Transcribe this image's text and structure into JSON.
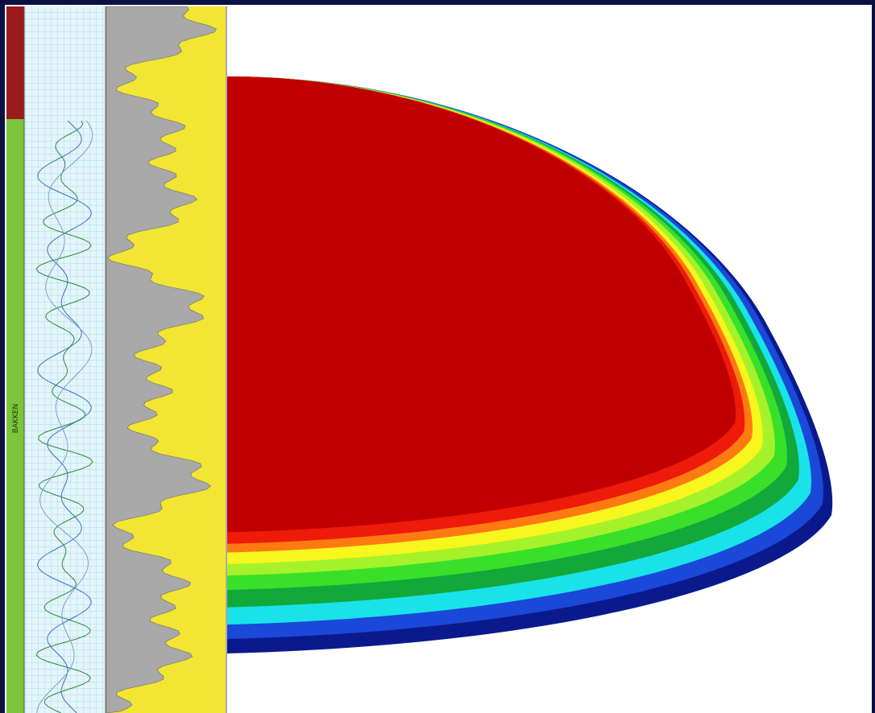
{
  "log_track": {
    "zones": [
      {
        "label": "BAKKEN"
      }
    ]
  }
}
